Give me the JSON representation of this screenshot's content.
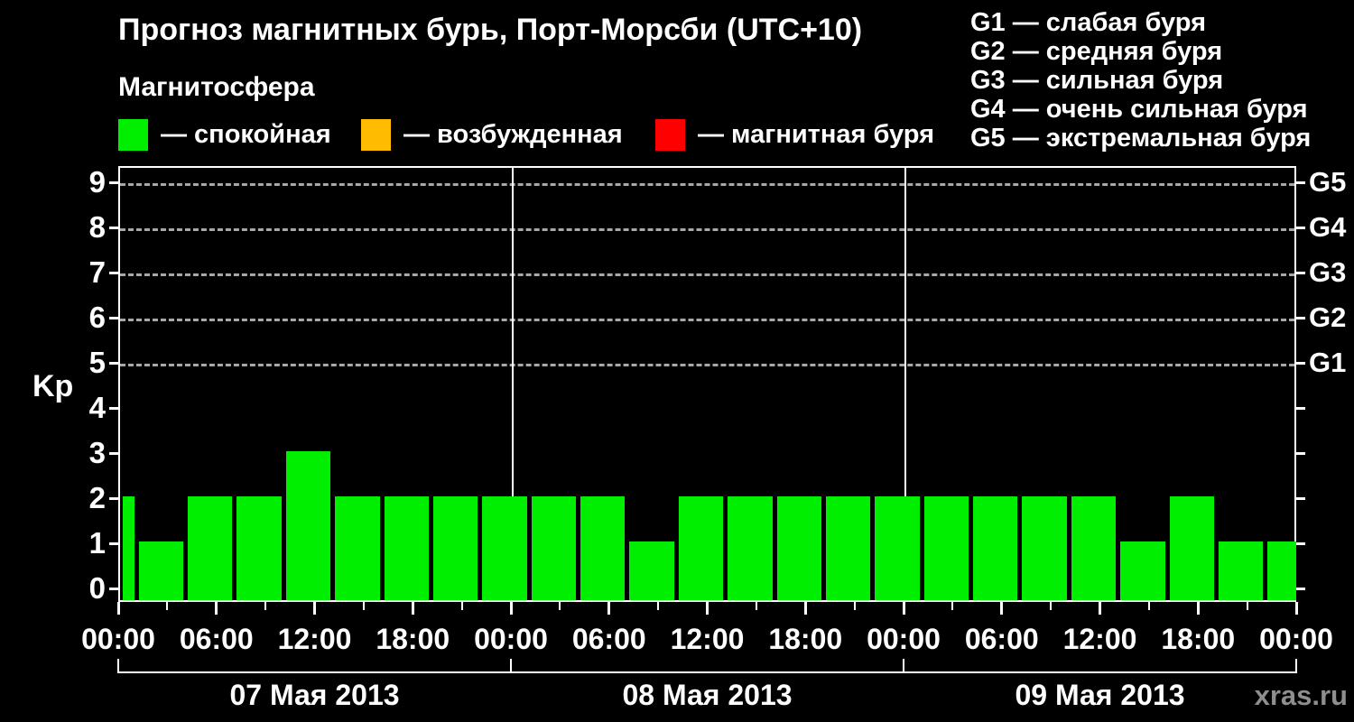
{
  "title": "Прогноз магнитных бурь, Порт-Морсби (UTC+10)",
  "subtitle": "Магнитосфера",
  "legend": {
    "items": [
      {
        "name": "quiet",
        "label": "— спокойная",
        "color": "#00ee00"
      },
      {
        "name": "excited",
        "label": "— возбужденная",
        "color": "#ffbc00"
      },
      {
        "name": "storm",
        "label": "— магнитная буря",
        "color": "#ff0000"
      }
    ]
  },
  "g_scale_legend": [
    "G1 — слабая буря",
    "G2 — средняя буря",
    "G3 — сильная буря",
    "G4 — очень сильная буря",
    "G5 — экстремальная буря"
  ],
  "watermark": "xras.ru",
  "chart_data": {
    "type": "bar",
    "ylabel": "Kp",
    "ylim": [
      0,
      9
    ],
    "total_hours": 72,
    "bar_color": "#00ee00",
    "grid": "dashed horizontal at Kp 5..9",
    "y_ticks": [
      0,
      1,
      2,
      3,
      4,
      5,
      6,
      7,
      8,
      9
    ],
    "y_gridlines": [
      5,
      6,
      7,
      8,
      9
    ],
    "right_axis": [
      {
        "kp": 5,
        "label": "G1"
      },
      {
        "kp": 6,
        "label": "G2"
      },
      {
        "kp": 7,
        "label": "G3"
      },
      {
        "kp": 8,
        "label": "G4"
      },
      {
        "kp": 9,
        "label": "G5"
      }
    ],
    "x_major_ticks": [
      {
        "hour": 0,
        "label": "00:00"
      },
      {
        "hour": 6,
        "label": "06:00"
      },
      {
        "hour": 12,
        "label": "12:00"
      },
      {
        "hour": 18,
        "label": "18:00"
      },
      {
        "hour": 24,
        "label": "00:00"
      },
      {
        "hour": 30,
        "label": "06:00"
      },
      {
        "hour": 36,
        "label": "12:00"
      },
      {
        "hour": 42,
        "label": "18:00"
      },
      {
        "hour": 48,
        "label": "00:00"
      },
      {
        "hour": 54,
        "label": "06:00"
      },
      {
        "hour": 60,
        "label": "12:00"
      },
      {
        "hour": 66,
        "label": "18:00"
      },
      {
        "hour": 72,
        "label": "00:00"
      }
    ],
    "x_minor_tick_hours": [
      3,
      9,
      15,
      21,
      27,
      33,
      39,
      45,
      51,
      57,
      63,
      69
    ],
    "day_boundary_hours": [
      0,
      24,
      48,
      72
    ],
    "days": [
      {
        "label": "07 Мая 2013",
        "start_hour": 0,
        "end_hour": 24
      },
      {
        "label": "08 Мая 2013",
        "start_hour": 24,
        "end_hour": 48
      },
      {
        "label": "09 Мая 2013",
        "start_hour": 48,
        "end_hour": 72
      }
    ],
    "bars": [
      {
        "h0": 0,
        "h1": 1,
        "kp": 2
      },
      {
        "h0": 1,
        "h1": 4,
        "kp": 1
      },
      {
        "h0": 4,
        "h1": 7,
        "kp": 2
      },
      {
        "h0": 7,
        "h1": 10,
        "kp": 2
      },
      {
        "h0": 10,
        "h1": 13,
        "kp": 3
      },
      {
        "h0": 13,
        "h1": 16,
        "kp": 2
      },
      {
        "h0": 16,
        "h1": 19,
        "kp": 2
      },
      {
        "h0": 19,
        "h1": 22,
        "kp": 2
      },
      {
        "h0": 22,
        "h1": 25,
        "kp": 2
      },
      {
        "h0": 25,
        "h1": 28,
        "kp": 2
      },
      {
        "h0": 28,
        "h1": 31,
        "kp": 2
      },
      {
        "h0": 31,
        "h1": 34,
        "kp": 1
      },
      {
        "h0": 34,
        "h1": 37,
        "kp": 2
      },
      {
        "h0": 37,
        "h1": 40,
        "kp": 2
      },
      {
        "h0": 40,
        "h1": 43,
        "kp": 2
      },
      {
        "h0": 43,
        "h1": 46,
        "kp": 2
      },
      {
        "h0": 46,
        "h1": 49,
        "kp": 2
      },
      {
        "h0": 49,
        "h1": 52,
        "kp": 2
      },
      {
        "h0": 52,
        "h1": 55,
        "kp": 2
      },
      {
        "h0": 55,
        "h1": 58,
        "kp": 2
      },
      {
        "h0": 58,
        "h1": 61,
        "kp": 2
      },
      {
        "h0": 61,
        "h1": 64,
        "kp": 1
      },
      {
        "h0": 64,
        "h1": 67,
        "kp": 2
      },
      {
        "h0": 67,
        "h1": 70,
        "kp": 1
      },
      {
        "h0": 70,
        "h1": 72,
        "kp": 1
      }
    ]
  }
}
